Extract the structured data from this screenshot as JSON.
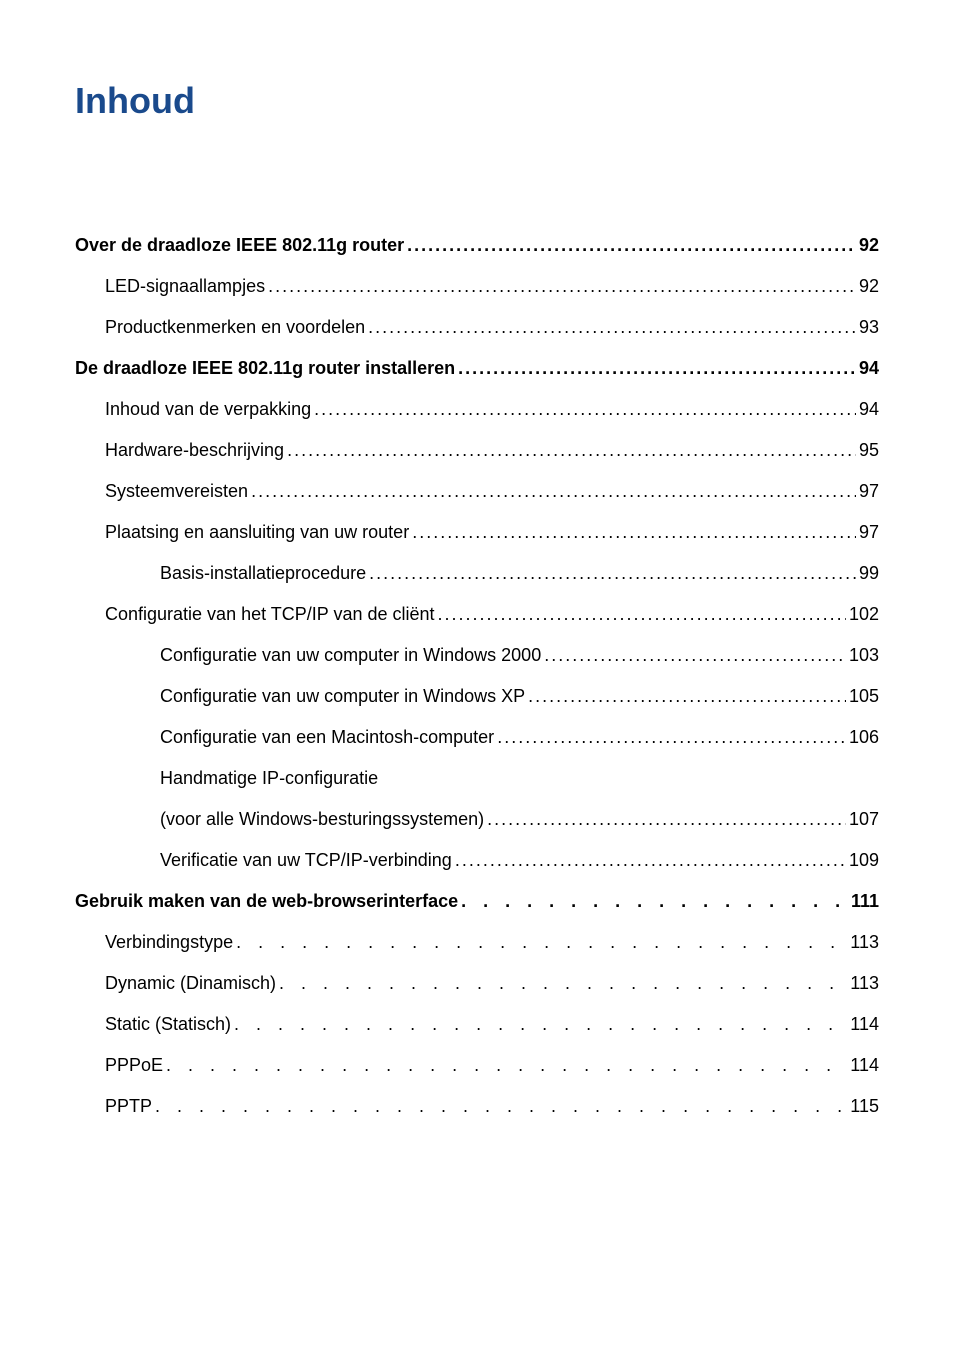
{
  "title": "Inhoud",
  "entries": [
    {
      "text": "Over de draadloze IEEE 802.11g router",
      "page": "92",
      "bold": true,
      "indent": 0,
      "leader": "dots"
    },
    {
      "text": "LED-signaallampjes",
      "page": "92",
      "bold": false,
      "indent": 1,
      "leader": "dots"
    },
    {
      "text": "Productkenmerken en voordelen",
      "page": "93",
      "bold": false,
      "indent": 1,
      "leader": "dots"
    },
    {
      "text": "De draadloze IEEE 802.11g router installeren",
      "page": "94",
      "bold": true,
      "indent": 0,
      "leader": "dots"
    },
    {
      "text": "Inhoud van de verpakking",
      "page": "94",
      "bold": false,
      "indent": 1,
      "leader": "dots"
    },
    {
      "text": "Hardware-beschrijving",
      "page": "95",
      "bold": false,
      "indent": 1,
      "leader": "dots"
    },
    {
      "text": "Systeemvereisten",
      "page": "97",
      "bold": false,
      "indent": 1,
      "leader": "dots"
    },
    {
      "text": "Plaatsing en aansluiting van uw router",
      "page": "97",
      "bold": false,
      "indent": 1,
      "leader": "dots"
    },
    {
      "text": "Basis-installatieprocedure",
      "page": "99",
      "bold": false,
      "indent": 2,
      "leader": "dots"
    },
    {
      "text": "Configuratie van het TCP/IP van de cliënt",
      "page": "102",
      "bold": false,
      "indent": 1,
      "leader": "dots"
    },
    {
      "text": "Configuratie van uw computer in Windows 2000",
      "page": "103",
      "bold": false,
      "indent": 2,
      "leader": "dots"
    },
    {
      "text": "Configuratie van uw computer in Windows XP",
      "page": "105",
      "bold": false,
      "indent": 2,
      "leader": "dots"
    },
    {
      "text": "Configuratie van een Macintosh-computer",
      "page": "106",
      "bold": false,
      "indent": 2,
      "leader": "dots"
    },
    {
      "text": "Handmatige IP-configuratie",
      "page": "",
      "bold": false,
      "indent": 2,
      "leader": "none"
    },
    {
      "text": "(voor alle Windows-besturingssystemen)",
      "page": "107",
      "bold": false,
      "indent": 2,
      "leader": "dots"
    },
    {
      "text": "Verificatie van uw TCP/IP-verbinding",
      "page": "109",
      "bold": false,
      "indent": 2,
      "leader": "dots"
    },
    {
      "text": "Gebruik maken van de web-browserinterface",
      "page": "111",
      "bold": true,
      "indent": 0,
      "leader": "wide"
    },
    {
      "text": "Verbindingstype",
      "page": "113",
      "bold": false,
      "indent": 1,
      "leader": "wide"
    },
    {
      "text": "Dynamic (Dinamisch)",
      "page": "113",
      "bold": false,
      "indent": 1,
      "leader": "wide"
    },
    {
      "text": "Static (Statisch)",
      "page": "114",
      "bold": false,
      "indent": 1,
      "leader": "wide"
    },
    {
      "text": "PPPoE",
      "page": "114",
      "bold": false,
      "indent": 1,
      "leader": "wide"
    },
    {
      "text": "PPTP",
      "page": "115",
      "bold": false,
      "indent": 1,
      "leader": "wide"
    }
  ],
  "colors": {
    "title_color": "#1a4a8c",
    "text_color": "#000000",
    "background_color": "#ffffff"
  },
  "typography": {
    "title_fontsize": 36,
    "body_fontsize": 18,
    "font_family": "Arial, Helvetica, sans-serif"
  }
}
